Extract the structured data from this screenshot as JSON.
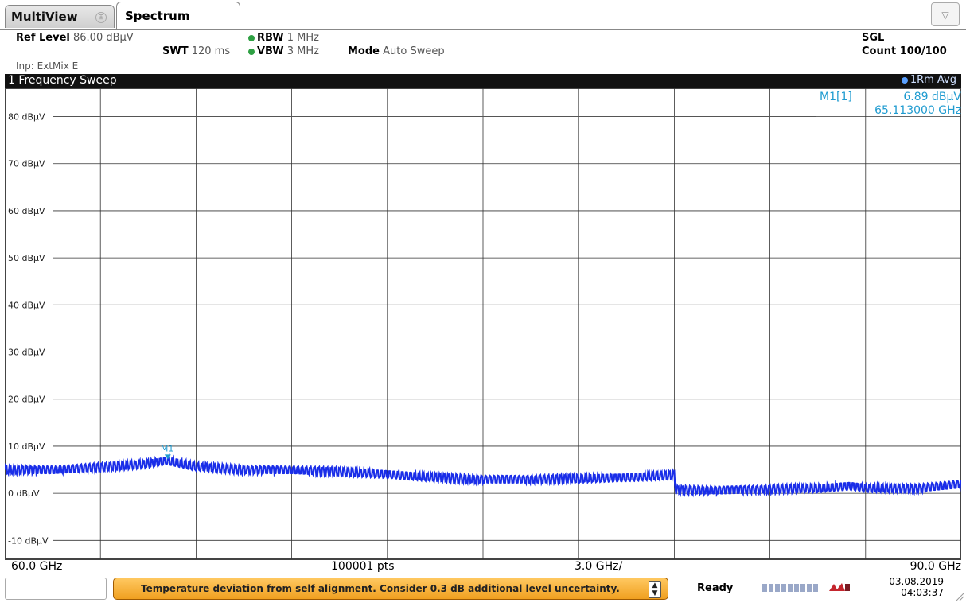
{
  "tabs": {
    "multiview": "MultiView",
    "spectrum": "Spectrum",
    "multiview_icon": "grid-icon",
    "dropdown_icon": "triangle-down-icon",
    "dropdown_glyph": "▽"
  },
  "settings": {
    "ref_level_label": "Ref Level",
    "ref_level_value": "86.00 dBµV",
    "swt_label": "SWT",
    "swt_value": "120 ms",
    "rbw_label": "RBW",
    "rbw_value": "1 MHz",
    "vbw_label": "VBW",
    "vbw_value": "3 MHz",
    "mode_label": "Mode",
    "mode_value": "Auto Sweep",
    "input": "Inp: ExtMix E",
    "sgl": "SGL",
    "count": "Count 100/100"
  },
  "window": {
    "title": "1 Frequency Sweep",
    "trace_info": "1Rm Avg"
  },
  "marker": {
    "label": "M1[1]",
    "value": "6.89 dBµV",
    "freq": "65.113000 GHz",
    "tag": "M1"
  },
  "footer": {
    "start": "60.0 GHz",
    "points": "100001 pts",
    "span_per_div": "3.0 GHz/",
    "stop": "90.0 GHz"
  },
  "status": {
    "message": "Temperature deviation from self alignment. Consider 0.3 dB additional level uncertainty.",
    "ready": "Ready",
    "date": "03.08.2019",
    "time": "04:03:37",
    "accent_orange": "#f0a020"
  },
  "chart_data": {
    "type": "line",
    "xlabel": "",
    "ylabel": "",
    "x_range": [
      60.0,
      90.0
    ],
    "x_unit": "GHz",
    "ylim": [
      -14,
      86
    ],
    "ytick_values": [
      80,
      70,
      60,
      50,
      40,
      30,
      20,
      10,
      0,
      -10
    ],
    "ytick_labels": [
      "80 dBµV",
      "70 dBµV",
      "60 dBµV",
      "50 dBµV",
      "40 dBµV",
      "30 dBµV",
      "20 dBµV",
      "10 dBµV",
      "0 dBµV",
      "-10 dBµV"
    ],
    "grid": true,
    "x_divisions": 10,
    "ref_line_value": 80,
    "trace_color": "#1a2ee8",
    "marker_color": "#1f9bd0",
    "series": [
      {
        "x": [
          60.0,
          61.5,
          63.0,
          64.5,
          65.1,
          66.0,
          67.5,
          69.0,
          70.5,
          72.0,
          73.5,
          75.0,
          76.5,
          78.0,
          79.5,
          81.0,
          81.05,
          82.5,
          84.0,
          85.5,
          86.5,
          87.0,
          88.5,
          90.0
        ],
        "y": [
          5.0,
          5.0,
          5.6,
          6.2,
          6.9,
          5.6,
          5.0,
          5.0,
          4.6,
          4.0,
          3.3,
          3.0,
          3.0,
          3.1,
          3.3,
          3.9,
          0.7,
          0.7,
          0.9,
          1.0,
          1.5,
          1.1,
          1.0,
          2.0
        ]
      }
    ],
    "marker_x": 65.113,
    "marker_y": 6.89
  }
}
